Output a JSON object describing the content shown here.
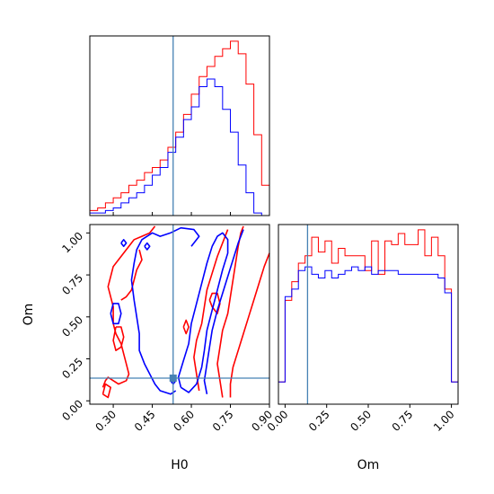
{
  "chart_data": {
    "type": "corner",
    "colors": {
      "series_a": "#ff0000",
      "series_b": "#0000ff",
      "truth": "#4682b4"
    },
    "truth": {
      "H0": 0.53,
      "Om": 0.135
    },
    "xlim_H0": [
      0.21,
      0.9
    ],
    "ylim_Om": [
      -0.02,
      1.05
    ],
    "xlim_Om": [
      -0.04,
      1.04
    ],
    "hist_H0": {
      "bin_edges": [
        0.21,
        0.24,
        0.27,
        0.3,
        0.33,
        0.36,
        0.39,
        0.42,
        0.45,
        0.48,
        0.51,
        0.54,
        0.57,
        0.6,
        0.63,
        0.66,
        0.69,
        0.72,
        0.75,
        0.78,
        0.81,
        0.84,
        0.87,
        0.9
      ],
      "red": [
        2,
        3,
        5,
        7,
        9,
        12,
        14,
        17,
        19,
        22,
        27,
        33,
        40,
        48,
        55,
        59,
        63,
        66,
        69,
        64,
        52,
        32,
        12
      ],
      "blue": [
        1,
        1,
        2,
        3,
        5,
        7,
        9,
        12,
        16,
        19,
        25,
        31,
        38,
        43,
        51,
        54,
        51,
        42,
        33,
        20,
        9,
        1,
        0
      ]
    },
    "hist_Om": {
      "bin_edges": [
        -0.04,
        0.0,
        0.04,
        0.08,
        0.12,
        0.16,
        0.2,
        0.24,
        0.28,
        0.32,
        0.36,
        0.4,
        0.44,
        0.48,
        0.52,
        0.56,
        0.6,
        0.64,
        0.68,
        0.72,
        0.76,
        0.8,
        0.84,
        0.88,
        0.92,
        0.96,
        1.0,
        1.04
      ],
      "red": [
        6,
        28,
        33,
        38,
        40,
        45,
        41,
        44,
        38,
        42,
        40,
        40,
        40,
        36,
        44,
        35,
        44,
        43,
        46,
        43,
        43,
        47,
        40,
        45,
        40,
        31,
        6
      ],
      "blue": [
        6,
        29,
        31,
        36,
        37,
        35,
        34,
        36,
        34,
        35,
        36,
        37,
        36,
        37,
        35,
        36,
        36,
        36,
        35,
        35,
        35,
        35,
        35,
        35,
        34,
        30,
        6
      ]
    },
    "ticks": {
      "H0": [
        {
          "v": 0.3,
          "label": "0.30"
        },
        {
          "v": 0.45,
          "label": "0.45"
        },
        {
          "v": 0.6,
          "label": "0.60"
        },
        {
          "v": 0.75,
          "label": "0.75"
        },
        {
          "v": 0.9,
          "label": "0.90"
        }
      ],
      "Om_y": [
        {
          "v": 0.0,
          "label": "0.00"
        },
        {
          "v": 0.25,
          "label": "0.25"
        },
        {
          "v": 0.5,
          "label": "0.50"
        },
        {
          "v": 0.75,
          "label": "0.75"
        },
        {
          "v": 1.0,
          "label": "1.00"
        }
      ],
      "Om_x": [
        {
          "v": 0.0,
          "label": "0.00"
        },
        {
          "v": 0.25,
          "label": "0.25"
        },
        {
          "v": 0.5,
          "label": "0.50"
        },
        {
          "v": 0.75,
          "label": "0.75"
        },
        {
          "v": 1.0,
          "label": "1.00"
        }
      ]
    },
    "contours": [
      {
        "color": "red",
        "points": [
          [
            0.46,
            1.04
          ],
          [
            0.44,
            1.0
          ],
          [
            0.41,
            0.98
          ],
          [
            0.38,
            0.96
          ],
          [
            0.36,
            0.92
          ],
          [
            0.33,
            0.86
          ],
          [
            0.3,
            0.8
          ],
          [
            0.29,
            0.74
          ],
          [
            0.28,
            0.68
          ],
          [
            0.29,
            0.62
          ],
          [
            0.3,
            0.56
          ],
          [
            0.3,
            0.46
          ],
          [
            0.31,
            0.4
          ],
          [
            0.33,
            0.34
          ],
          [
            0.34,
            0.28
          ],
          [
            0.35,
            0.22
          ],
          [
            0.36,
            0.16
          ],
          [
            0.35,
            0.12
          ],
          [
            0.32,
            0.1
          ],
          [
            0.3,
            0.12
          ],
          [
            0.28,
            0.14
          ],
          [
            0.27,
            0.12
          ],
          [
            0.26,
            0.08
          ]
        ]
      },
      {
        "color": "red",
        "points": [
          [
            0.4,
            0.9
          ],
          [
            0.41,
            0.84
          ],
          [
            0.39,
            0.78
          ],
          [
            0.38,
            0.72
          ],
          [
            0.37,
            0.66
          ],
          [
            0.35,
            0.62
          ],
          [
            0.33,
            0.6
          ]
        ]
      },
      {
        "color": "red",
        "points": [
          [
            0.31,
            0.44
          ],
          [
            0.3,
            0.36
          ],
          [
            0.31,
            0.3
          ],
          [
            0.33,
            0.32
          ],
          [
            0.34,
            0.38
          ],
          [
            0.33,
            0.44
          ],
          [
            0.31,
            0.44
          ]
        ]
      },
      {
        "color": "red",
        "points": [
          [
            0.26,
            0.04
          ],
          [
            0.27,
            0.1
          ],
          [
            0.29,
            0.08
          ],
          [
            0.28,
            0.02
          ],
          [
            0.26,
            0.04
          ]
        ]
      },
      {
        "color": "red",
        "points": [
          [
            0.67,
            0.6
          ],
          [
            0.68,
            0.64
          ],
          [
            0.7,
            0.64
          ],
          [
            0.71,
            0.58
          ],
          [
            0.7,
            0.52
          ],
          [
            0.68,
            0.56
          ],
          [
            0.67,
            0.6
          ]
        ]
      },
      {
        "color": "red",
        "points": [
          [
            0.63,
            0.06
          ],
          [
            0.62,
            0.16
          ],
          [
            0.61,
            0.26
          ],
          [
            0.62,
            0.36
          ],
          [
            0.64,
            0.46
          ],
          [
            0.65,
            0.56
          ],
          [
            0.66,
            0.66
          ],
          [
            0.68,
            0.76
          ],
          [
            0.7,
            0.86
          ],
          [
            0.72,
            0.94
          ],
          [
            0.74,
            1.02
          ]
        ]
      },
      {
        "color": "red",
        "points": [
          [
            0.72,
            0.02
          ],
          [
            0.71,
            0.12
          ],
          [
            0.7,
            0.22
          ],
          [
            0.71,
            0.32
          ],
          [
            0.72,
            0.42
          ],
          [
            0.74,
            0.52
          ],
          [
            0.75,
            0.62
          ],
          [
            0.76,
            0.72
          ],
          [
            0.77,
            0.82
          ],
          [
            0.78,
            0.92
          ],
          [
            0.79,
            1.0
          ],
          [
            0.8,
            1.04
          ]
        ]
      },
      {
        "color": "red",
        "points": [
          [
            0.75,
            0.02
          ],
          [
            0.75,
            0.1
          ],
          [
            0.76,
            0.2
          ],
          [
            0.78,
            0.3
          ],
          [
            0.8,
            0.4
          ],
          [
            0.82,
            0.5
          ],
          [
            0.84,
            0.6
          ],
          [
            0.86,
            0.7
          ],
          [
            0.88,
            0.8
          ],
          [
            0.9,
            0.88
          ]
        ]
      },
      {
        "color": "red",
        "points": [
          [
            0.57,
            0.44
          ],
          [
            0.58,
            0.48
          ],
          [
            0.59,
            0.44
          ],
          [
            0.58,
            0.4
          ],
          [
            0.57,
            0.44
          ]
        ]
      },
      {
        "color": "blue",
        "points": [
          [
            0.52,
            1.0
          ],
          [
            0.48,
            0.98
          ],
          [
            0.45,
            1.0
          ],
          [
            0.41,
            0.96
          ],
          [
            0.39,
            0.9
          ],
          [
            0.38,
            0.82
          ],
          [
            0.37,
            0.72
          ],
          [
            0.38,
            0.6
          ],
          [
            0.39,
            0.5
          ],
          [
            0.4,
            0.4
          ],
          [
            0.4,
            0.3
          ],
          [
            0.42,
            0.22
          ],
          [
            0.44,
            0.16
          ],
          [
            0.46,
            0.1
          ],
          [
            0.48,
            0.06
          ],
          [
            0.52,
            0.04
          ],
          [
            0.54,
            0.06
          ]
        ]
      },
      {
        "color": "blue",
        "points": [
          [
            0.52,
            1.0
          ],
          [
            0.56,
            1.03
          ],
          [
            0.61,
            1.02
          ],
          [
            0.63,
            0.98
          ],
          [
            0.6,
            0.92
          ]
        ]
      },
      {
        "color": "blue",
        "points": [
          [
            0.29,
            0.52
          ],
          [
            0.3,
            0.58
          ],
          [
            0.32,
            0.58
          ],
          [
            0.33,
            0.52
          ],
          [
            0.32,
            0.46
          ],
          [
            0.3,
            0.46
          ],
          [
            0.29,
            0.52
          ]
        ]
      },
      {
        "color": "blue",
        "points": [
          [
            0.42,
            0.92
          ],
          [
            0.43,
            0.94
          ],
          [
            0.44,
            0.92
          ],
          [
            0.43,
            0.9
          ],
          [
            0.42,
            0.92
          ]
        ]
      },
      {
        "color": "blue",
        "points": [
          [
            0.33,
            0.94
          ],
          [
            0.34,
            0.96
          ],
          [
            0.35,
            0.94
          ],
          [
            0.34,
            0.92
          ],
          [
            0.33,
            0.94
          ]
        ]
      },
      {
        "color": "blue",
        "points": [
          [
            0.56,
            0.08
          ],
          [
            0.55,
            0.14
          ],
          [
            0.57,
            0.24
          ],
          [
            0.59,
            0.34
          ],
          [
            0.6,
            0.46
          ],
          [
            0.62,
            0.58
          ],
          [
            0.64,
            0.7
          ],
          [
            0.66,
            0.82
          ],
          [
            0.68,
            0.92
          ],
          [
            0.7,
            0.98
          ],
          [
            0.72,
            1.0
          ],
          [
            0.74,
            0.96
          ],
          [
            0.74,
            0.88
          ],
          [
            0.72,
            0.78
          ],
          [
            0.7,
            0.66
          ],
          [
            0.68,
            0.54
          ],
          [
            0.66,
            0.42
          ],
          [
            0.65,
            0.3
          ],
          [
            0.64,
            0.2
          ],
          [
            0.62,
            0.1
          ],
          [
            0.59,
            0.05
          ],
          [
            0.56,
            0.08
          ]
        ]
      },
      {
        "color": "blue",
        "points": [
          [
            0.66,
            0.04
          ],
          [
            0.65,
            0.12
          ],
          [
            0.66,
            0.22
          ],
          [
            0.67,
            0.32
          ],
          [
            0.68,
            0.42
          ],
          [
            0.7,
            0.54
          ],
          [
            0.72,
            0.64
          ],
          [
            0.74,
            0.74
          ],
          [
            0.76,
            0.84
          ],
          [
            0.78,
            0.94
          ],
          [
            0.8,
            1.02
          ]
        ]
      },
      {
        "color": "blue",
        "points": [
          [
            0.52,
            0.12
          ],
          [
            0.53,
            0.14
          ],
          [
            0.54,
            0.12
          ],
          [
            0.53,
            0.1
          ],
          [
            0.52,
            0.12
          ]
        ]
      }
    ]
  },
  "axes": {
    "xlabel_h0": "H0",
    "ylabel_om": "Om",
    "xlabel_om": "Om"
  }
}
